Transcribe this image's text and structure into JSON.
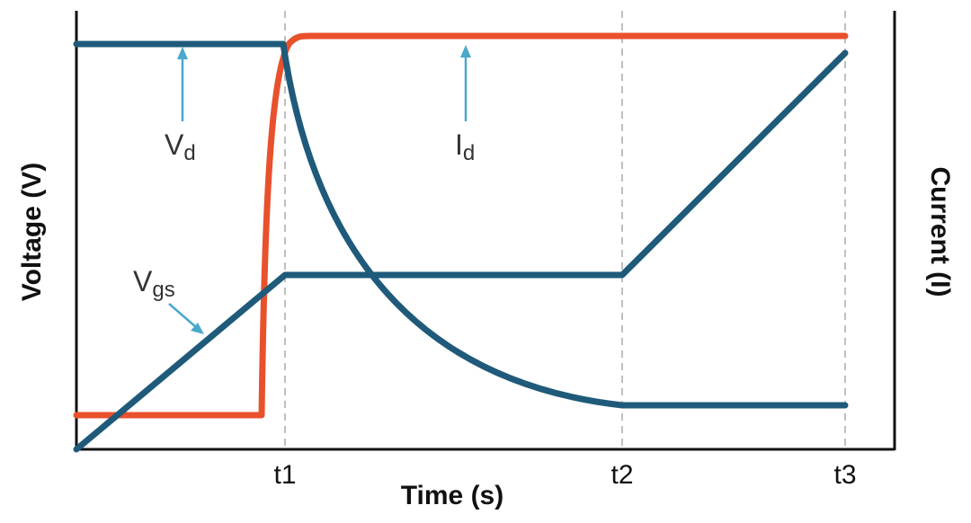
{
  "chart_data": {
    "type": "line",
    "xlabel": "Time (s)",
    "ylabel_left": "Voltage (V)",
    "ylabel_right": "Current (I)",
    "x_ticks": [
      "t1",
      "t2",
      "t3"
    ],
    "grid": "dashed vertical lines at t1, t2, t3",
    "series": [
      {
        "name": "Vd",
        "color": "#1f5a7a",
        "shape": "high until t1, exponential decay to low level at t2, flat until t3"
      },
      {
        "name": "Id",
        "color": "#e8512c",
        "shape": "low until just before t1, sharp rise near t1, flat high until t3"
      },
      {
        "name": "Vgs",
        "color": "#1f5a7a",
        "shape": "linear rise from 0 to t1, plateau t1 to t2, linear rise t2 to t3"
      }
    ],
    "labels": {
      "vd": {
        "main": "V",
        "sub": "d"
      },
      "id": {
        "main": "I",
        "sub": "d"
      },
      "vgs": {
        "main": "V",
        "sub": "gs"
      }
    },
    "arrow_color": "#4aa8cc"
  }
}
